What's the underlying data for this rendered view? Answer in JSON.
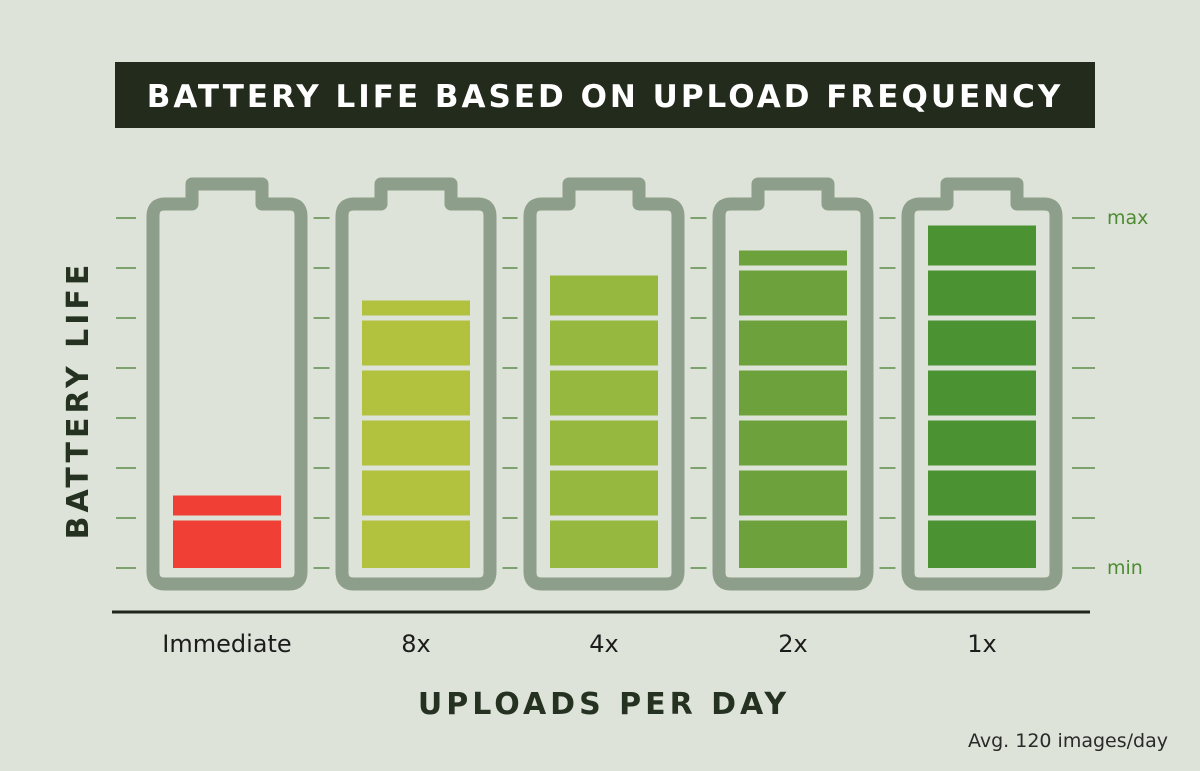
{
  "chart_data": {
    "type": "bar",
    "title": "BATTERY LIFE BASED ON UPLOAD FREQUENCY",
    "xlabel": "UPLOADS PER DAY",
    "ylabel": "BATTERY LIFE",
    "ymin_label": "min",
    "ymax_label": "max",
    "note": "Avg. 120 images/day",
    "ylim": [
      0,
      7
    ],
    "categories": [
      "Immediate",
      "8x",
      "4x",
      "2x",
      "1x"
    ],
    "values": [
      1.5,
      5.4,
      5.9,
      6.4,
      6.9
    ],
    "colors": [
      "#f04035",
      "#b3c23e",
      "#97b83f",
      "#6da13c",
      "#4a9232"
    ]
  }
}
